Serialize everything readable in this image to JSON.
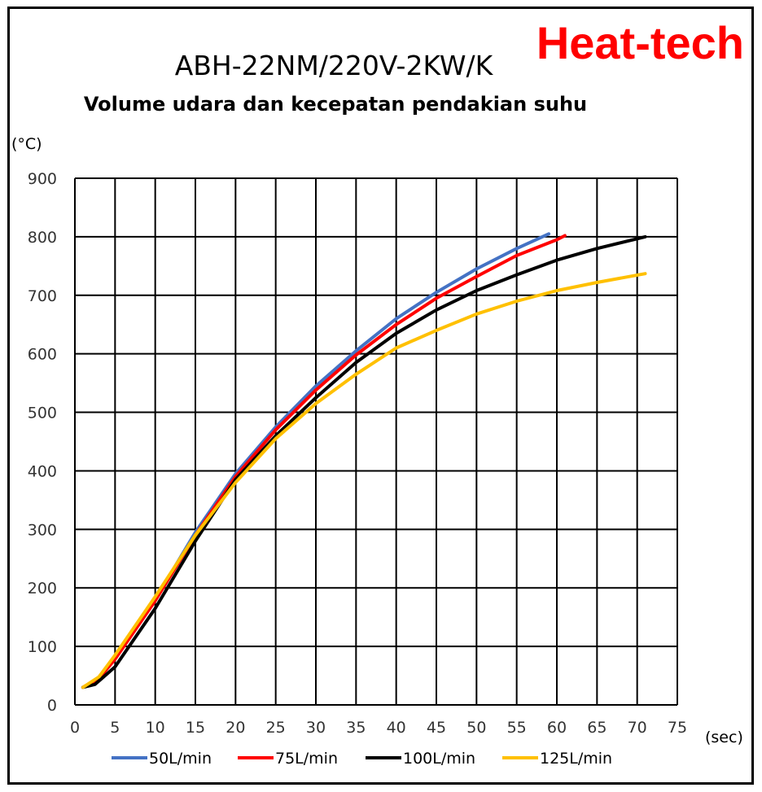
{
  "brand": "Heat-tech",
  "chart_data": {
    "type": "line",
    "title": "ABH-22NM/220V-2KW/K",
    "subtitle": "Volume udara dan kecepatan pendakian suhu",
    "xlabel": "(sec)",
    "ylabel": "(°C)",
    "xlim": [
      0,
      75
    ],
    "ylim": [
      0,
      900
    ],
    "xticks": [
      0,
      5,
      10,
      15,
      20,
      25,
      30,
      35,
      40,
      45,
      50,
      55,
      60,
      65,
      70,
      75
    ],
    "yticks": [
      0,
      100,
      200,
      300,
      400,
      500,
      600,
      700,
      800,
      900
    ],
    "grid": true,
    "legend_position": "bottom",
    "series": [
      {
        "name": "50L/min",
        "color": "#4472c4",
        "x": [
          1,
          3,
          5,
          10,
          15,
          20,
          25,
          30,
          35,
          40,
          45,
          50,
          55,
          59
        ],
        "y": [
          30,
          45,
          80,
          180,
          295,
          395,
          475,
          545,
          605,
          660,
          705,
          745,
          780,
          805
        ]
      },
      {
        "name": "75L/min",
        "color": "#ff0000",
        "x": [
          1,
          3,
          5,
          10,
          15,
          20,
          25,
          30,
          35,
          40,
          45,
          50,
          55,
          60,
          61
        ],
        "y": [
          30,
          45,
          78,
          178,
          290,
          390,
          470,
          538,
          598,
          650,
          695,
          732,
          768,
          795,
          802
        ]
      },
      {
        "name": "100L/min",
        "color": "#000000",
        "x": [
          1,
          2.5,
          5,
          10,
          15,
          20,
          25,
          30,
          35,
          40,
          45,
          50,
          55,
          60,
          65,
          71
        ],
        "y": [
          30,
          35,
          65,
          165,
          280,
          385,
          460,
          525,
          585,
          635,
          675,
          708,
          735,
          760,
          780,
          800
        ]
      },
      {
        "name": "125L/min",
        "color": "#ffc000",
        "x": [
          1,
          3,
          5,
          10,
          15,
          20,
          25,
          30,
          35,
          40,
          45,
          50,
          55,
          60,
          65,
          71
        ],
        "y": [
          30,
          48,
          85,
          185,
          290,
          380,
          455,
          515,
          565,
          610,
          640,
          668,
          690,
          708,
          722,
          737
        ]
      }
    ]
  }
}
